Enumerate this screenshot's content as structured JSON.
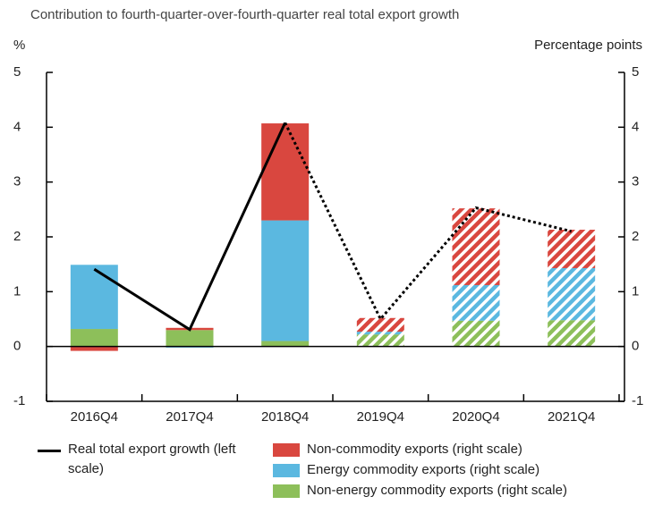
{
  "chart_data": {
    "type": "bar-line",
    "title": "Contribution to fourth-quarter-over-fourth-quarter real total export growth",
    "y_label": "%",
    "y2_label": "Percentage points",
    "categories": [
      "2016Q4",
      "2017Q4",
      "2018Q4",
      "2019Q4",
      "2020Q4",
      "2021Q4"
    ],
    "series": [
      {
        "name": "Real total export growth (left scale)",
        "type": "line",
        "color": "#000000",
        "axis": "y",
        "dashed_from": 2,
        "values": [
          1.41,
          0.31,
          4.08,
          0.5,
          2.53,
          2.1
        ]
      },
      {
        "name": "Non-commodity exports (right scale)",
        "type": "bar",
        "color": "#d9473f",
        "axis": "y2",
        "hatched_from": 3,
        "values": [
          -0.08,
          0.04,
          1.77,
          0.25,
          1.4,
          0.7
        ]
      },
      {
        "name": "Energy commodity exports (right scale)",
        "type": "bar",
        "color": "#5bb8e0",
        "axis": "y2",
        "hatched_from": 3,
        "values": [
          1.17,
          -0.02,
          2.2,
          0.05,
          0.65,
          0.95
        ]
      },
      {
        "name": "Non-energy commodity exports (right scale)",
        "type": "bar",
        "color": "#8dbf5a",
        "axis": "y2",
        "hatched_from": 3,
        "values": [
          0.32,
          0.3,
          0.1,
          0.22,
          0.47,
          0.48
        ]
      }
    ],
    "ylim": [
      -1,
      5
    ],
    "yticks": [
      -1,
      0,
      1,
      2,
      3,
      4,
      5
    ],
    "y2lim": [
      -1,
      5
    ],
    "y2ticks": [
      -1,
      0,
      1,
      2,
      3,
      4,
      5
    ]
  }
}
